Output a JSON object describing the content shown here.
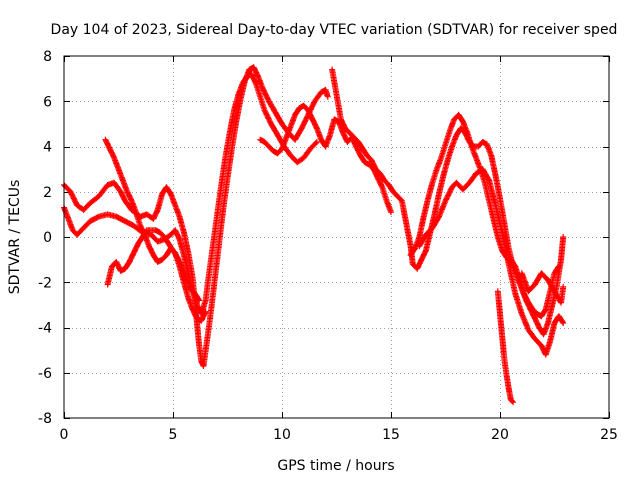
{
  "chart_data": {
    "type": "scatter",
    "title": "Day 104 of 2023, Sidereal Day-to-day VTEC variation (SDTVAR) for receiver sped",
    "xlabel": "GPS time / hours",
    "ylabel": "SDTVAR / TECUs",
    "xlim": [
      0,
      25
    ],
    "ylim": [
      -8,
      8
    ],
    "xticks": [
      0,
      5,
      10,
      15,
      20,
      25
    ],
    "yticks": [
      -8,
      -6,
      -4,
      -2,
      0,
      2,
      4,
      6,
      8
    ],
    "grid": true,
    "legend": "none",
    "marker": "+",
    "color": "#ff0000",
    "series": [
      {
        "name": "track-a",
        "points": [
          [
            0,
            2.3
          ],
          [
            0.3,
            2.0
          ],
          [
            0.6,
            1.4
          ],
          [
            0.9,
            1.2
          ],
          [
            1.2,
            1.5
          ],
          [
            1.6,
            1.8
          ],
          [
            2.0,
            2.3
          ],
          [
            2.3,
            2.4
          ],
          [
            2.6,
            2.0
          ],
          [
            2.8,
            1.6
          ],
          [
            3.1,
            1.2
          ],
          [
            3.5,
            0.9
          ],
          [
            3.8,
            1.0
          ],
          [
            4.1,
            0.8
          ],
          [
            4.3,
            1.2
          ],
          [
            4.5,
            1.9
          ],
          [
            4.7,
            2.2
          ],
          [
            4.9,
            1.9
          ],
          [
            5.1,
            1.4
          ],
          [
            5.3,
            0.9
          ],
          [
            5.5,
            0.2
          ],
          [
            5.7,
            -0.7
          ],
          [
            5.9,
            -1.8
          ],
          [
            6.0,
            -2.8
          ],
          [
            6.1,
            -3.8
          ],
          [
            6.2,
            -4.8
          ],
          [
            6.3,
            -5.5
          ],
          [
            6.4,
            -5.7
          ],
          [
            6.5,
            -5.0
          ],
          [
            6.7,
            -3.6
          ],
          [
            6.9,
            -2.0
          ],
          [
            7.1,
            -0.4
          ],
          [
            7.3,
            1.2
          ],
          [
            7.5,
            2.6
          ],
          [
            7.7,
            3.9
          ],
          [
            7.9,
            5.1
          ],
          [
            8.1,
            6.1
          ],
          [
            8.3,
            6.9
          ],
          [
            8.5,
            7.4
          ],
          [
            8.7,
            7.5
          ],
          [
            8.9,
            7.1
          ],
          [
            9.1,
            6.6
          ],
          [
            9.4,
            6.0
          ],
          [
            9.7,
            5.5
          ],
          [
            10.0,
            5.0
          ],
          [
            10.3,
            4.6
          ],
          [
            10.6,
            4.3
          ],
          [
            10.9,
            4.8
          ],
          [
            11.2,
            5.4
          ],
          [
            11.5,
            6.0
          ],
          [
            11.8,
            6.4
          ],
          [
            12.0,
            6.5
          ],
          [
            12.1,
            6.2
          ]
        ]
      },
      {
        "name": "track-b",
        "points": [
          [
            0,
            1.3
          ],
          [
            0.2,
            0.8
          ],
          [
            0.4,
            0.3
          ],
          [
            0.6,
            0.1
          ],
          [
            0.9,
            0.4
          ],
          [
            1.2,
            0.7
          ],
          [
            1.6,
            0.9
          ],
          [
            2.0,
            1.0
          ],
          [
            2.4,
            0.9
          ],
          [
            2.8,
            0.7
          ],
          [
            3.2,
            0.5
          ],
          [
            3.6,
            0.2
          ],
          [
            4.0,
            0.1
          ],
          [
            4.3,
            -0.2
          ],
          [
            4.6,
            -0.1
          ],
          [
            4.9,
            0.1
          ],
          [
            5.1,
            0.3
          ],
          [
            5.3,
            -0.1
          ],
          [
            5.5,
            -0.8
          ],
          [
            5.7,
            -1.6
          ],
          [
            5.9,
            -2.4
          ],
          [
            6.1,
            -3.0
          ],
          [
            6.3,
            -3.4
          ],
          [
            6.5,
            -2.8
          ],
          [
            6.6,
            -2.0
          ],
          [
            6.8,
            -0.6
          ],
          [
            7.0,
            0.8
          ],
          [
            7.2,
            2.2
          ],
          [
            7.4,
            3.5
          ],
          [
            7.6,
            4.6
          ],
          [
            7.8,
            5.6
          ],
          [
            8.0,
            6.3
          ],
          [
            8.2,
            6.8
          ],
          [
            8.4,
            7.1
          ],
          [
            8.6,
            7.2
          ],
          [
            8.8,
            6.8
          ],
          [
            9.0,
            6.2
          ],
          [
            9.2,
            5.6
          ],
          [
            9.5,
            5.0
          ],
          [
            9.8,
            4.5
          ],
          [
            10.1,
            4.0
          ],
          [
            10.4,
            3.6
          ],
          [
            10.7,
            3.3
          ],
          [
            11.0,
            3.5
          ],
          [
            11.3,
            3.9
          ],
          [
            11.6,
            4.2
          ]
        ]
      },
      {
        "name": "track-c",
        "points": [
          [
            1.9,
            4.3
          ],
          [
            2.1,
            3.9
          ],
          [
            2.3,
            3.5
          ],
          [
            2.5,
            3.0
          ],
          [
            2.7,
            2.5
          ],
          [
            2.9,
            2.0
          ],
          [
            3.1,
            1.6
          ],
          [
            3.3,
            1.1
          ],
          [
            3.5,
            0.5
          ],
          [
            3.7,
            0.1
          ],
          [
            3.9,
            -0.4
          ],
          [
            4.1,
            -0.8
          ],
          [
            4.3,
            -1.1
          ],
          [
            4.5,
            -1.0
          ],
          [
            4.7,
            -0.8
          ],
          [
            4.9,
            -0.5
          ],
          [
            5.1,
            -0.7
          ],
          [
            5.3,
            -1.3
          ],
          [
            5.5,
            -2.0
          ],
          [
            5.7,
            -2.7
          ],
          [
            5.9,
            -3.2
          ],
          [
            6.1,
            -3.6
          ],
          [
            6.3,
            -3.7
          ],
          [
            6.5,
            -3.3
          ]
        ]
      },
      {
        "name": "track-d",
        "points": [
          [
            2.0,
            -2.1
          ],
          [
            2.2,
            -1.3
          ],
          [
            2.4,
            -1.1
          ],
          [
            2.6,
            -1.5
          ],
          [
            2.8,
            -1.4
          ],
          [
            3.0,
            -1.1
          ],
          [
            3.2,
            -0.7
          ],
          [
            3.4,
            -0.3
          ],
          [
            3.6,
            0.0
          ],
          [
            3.8,
            0.3
          ],
          [
            4.0,
            0.3
          ],
          [
            4.2,
            0.3
          ],
          [
            4.4,
            0.2
          ],
          [
            4.6,
            0.0
          ],
          [
            4.8,
            -0.3
          ],
          [
            5.0,
            -0.6
          ],
          [
            5.2,
            -0.9
          ],
          [
            5.4,
            -1.3
          ],
          [
            5.6,
            -1.8
          ],
          [
            5.8,
            -2.3
          ],
          [
            6.0,
            -2.5
          ],
          [
            6.2,
            -2.8
          ]
        ]
      },
      {
        "name": "track-e",
        "points": [
          [
            9.0,
            4.3
          ],
          [
            9.2,
            4.2
          ],
          [
            9.4,
            4.0
          ],
          [
            9.6,
            3.8
          ],
          [
            9.8,
            3.7
          ],
          [
            10.0,
            3.9
          ],
          [
            10.2,
            4.4
          ],
          [
            10.4,
            4.9
          ],
          [
            10.6,
            5.4
          ],
          [
            10.8,
            5.7
          ],
          [
            11.0,
            5.8
          ],
          [
            11.2,
            5.6
          ],
          [
            11.4,
            5.2
          ],
          [
            11.6,
            4.8
          ],
          [
            11.8,
            4.3
          ],
          [
            12.0,
            4.0
          ],
          [
            12.2,
            4.5
          ],
          [
            12.4,
            5.2
          ],
          [
            12.6,
            5.1
          ],
          [
            12.8,
            4.6
          ],
          [
            13.0,
            4.2
          ],
          [
            13.2,
            4.4
          ],
          [
            13.4,
            4.0
          ],
          [
            13.6,
            3.6
          ],
          [
            13.8,
            3.3
          ],
          [
            14.0,
            3.2
          ],
          [
            14.2,
            3.0
          ],
          [
            14.4,
            2.6
          ],
          [
            14.6,
            2.2
          ],
          [
            14.8,
            1.6
          ],
          [
            15.0,
            1.1
          ]
        ]
      },
      {
        "name": "track-f",
        "points": [
          [
            12.3,
            7.4
          ],
          [
            12.5,
            6.3
          ],
          [
            12.7,
            5.2
          ],
          [
            12.9,
            4.8
          ],
          [
            13.1,
            4.6
          ],
          [
            13.3,
            4.4
          ],
          [
            13.5,
            4.2
          ],
          [
            13.7,
            3.9
          ],
          [
            13.9,
            3.6
          ],
          [
            14.1,
            3.4
          ],
          [
            14.3,
            3.0
          ],
          [
            14.5,
            2.8
          ],
          [
            14.7,
            2.5
          ],
          [
            14.9,
            2.3
          ],
          [
            15.1,
            2.0
          ],
          [
            15.3,
            1.8
          ],
          [
            15.5,
            1.6
          ],
          [
            15.7,
            0.6
          ],
          [
            15.9,
            -0.4
          ],
          [
            16.0,
            -1.2
          ],
          [
            16.2,
            -1.4
          ],
          [
            16.4,
            -1.0
          ],
          [
            16.6,
            -0.6
          ],
          [
            16.8,
            0.2
          ],
          [
            17.0,
            1.0
          ],
          [
            17.2,
            1.9
          ],
          [
            17.4,
            2.7
          ],
          [
            17.6,
            3.4
          ],
          [
            17.8,
            4.0
          ],
          [
            18.0,
            4.5
          ],
          [
            18.2,
            4.8
          ],
          [
            18.4,
            4.6
          ],
          [
            18.6,
            4.2
          ],
          [
            18.8,
            4.0
          ],
          [
            19.0,
            4.0
          ],
          [
            19.2,
            4.2
          ],
          [
            19.4,
            4.1
          ],
          [
            19.6,
            3.6
          ],
          [
            19.8,
            2.7
          ],
          [
            20.0,
            1.7
          ],
          [
            20.2,
            0.6
          ],
          [
            20.4,
            -0.5
          ],
          [
            20.6,
            -1.3
          ],
          [
            20.8,
            -1.8
          ],
          [
            21.0,
            -2.3
          ],
          [
            21.2,
            -2.8
          ],
          [
            21.4,
            -3.2
          ],
          [
            21.6,
            -3.6
          ],
          [
            21.8,
            -4.0
          ],
          [
            22.0,
            -4.3
          ],
          [
            22.2,
            -3.8
          ],
          [
            22.4,
            -3.0
          ],
          [
            22.6,
            -2.2
          ],
          [
            22.8,
            -1.0
          ],
          [
            22.9,
            0.0
          ]
        ]
      },
      {
        "name": "track-g",
        "points": [
          [
            15.9,
            -0.8
          ],
          [
            16.1,
            -0.5
          ],
          [
            16.3,
            0.0
          ],
          [
            16.5,
            0.9
          ],
          [
            16.7,
            1.7
          ],
          [
            16.9,
            2.4
          ],
          [
            17.1,
            3.0
          ],
          [
            17.3,
            3.5
          ],
          [
            17.5,
            4.1
          ],
          [
            17.7,
            4.7
          ],
          [
            17.9,
            5.2
          ],
          [
            18.1,
            5.4
          ],
          [
            18.3,
            5.1
          ],
          [
            18.5,
            4.6
          ],
          [
            18.7,
            4.0
          ],
          [
            18.9,
            3.5
          ],
          [
            19.1,
            3.0
          ],
          [
            19.3,
            2.4
          ],
          [
            19.5,
            1.6
          ],
          [
            19.7,
            0.8
          ],
          [
            19.9,
            0.0
          ],
          [
            20.1,
            -0.6
          ],
          [
            20.3,
            -0.9
          ],
          [
            20.5,
            -1.0
          ],
          [
            20.7,
            -1.3
          ],
          [
            20.9,
            -1.9
          ],
          [
            21.1,
            -2.5
          ],
          [
            21.3,
            -2.9
          ],
          [
            21.5,
            -3.2
          ],
          [
            21.7,
            -3.4
          ],
          [
            21.9,
            -3.5
          ],
          [
            22.1,
            -3.2
          ],
          [
            22.3,
            -2.4
          ],
          [
            22.5,
            -1.6
          ],
          [
            22.7,
            -1.3
          ]
        ]
      },
      {
        "name": "track-h",
        "points": [
          [
            16.3,
            -0.4
          ],
          [
            16.6,
            0.1
          ],
          [
            16.9,
            0.4
          ],
          [
            17.2,
            0.9
          ],
          [
            17.5,
            1.6
          ],
          [
            17.8,
            2.2
          ],
          [
            18.0,
            2.4
          ],
          [
            18.3,
            2.1
          ],
          [
            18.6,
            2.4
          ],
          [
            18.9,
            2.8
          ],
          [
            19.2,
            3.0
          ],
          [
            19.5,
            2.5
          ],
          [
            19.8,
            1.4
          ],
          [
            20.1,
            0.2
          ],
          [
            20.4,
            -1.2
          ],
          [
            20.7,
            -2.5
          ],
          [
            21.0,
            -3.4
          ],
          [
            21.3,
            -4.1
          ],
          [
            21.6,
            -4.5
          ],
          [
            21.9,
            -4.8
          ],
          [
            22.1,
            -5.2
          ],
          [
            22.3,
            -4.6
          ],
          [
            22.5,
            -3.8
          ],
          [
            22.7,
            -3.5
          ],
          [
            22.9,
            -3.8
          ]
        ]
      },
      {
        "name": "track-i",
        "points": [
          [
            19.9,
            -2.4
          ],
          [
            20.0,
            -3.4
          ],
          [
            20.1,
            -4.4
          ],
          [
            20.2,
            -5.4
          ],
          [
            20.3,
            -6.1
          ],
          [
            20.4,
            -6.7
          ],
          [
            20.5,
            -7.2
          ],
          [
            20.6,
            -7.3
          ]
        ]
      },
      {
        "name": "track-j",
        "points": [
          [
            21.0,
            -1.6
          ],
          [
            21.3,
            -2.4
          ],
          [
            21.6,
            -2.1
          ],
          [
            21.9,
            -1.6
          ],
          [
            22.2,
            -1.9
          ],
          [
            22.5,
            -2.4
          ],
          [
            22.8,
            -2.9
          ],
          [
            22.9,
            -2.2
          ]
        ]
      }
    ]
  }
}
